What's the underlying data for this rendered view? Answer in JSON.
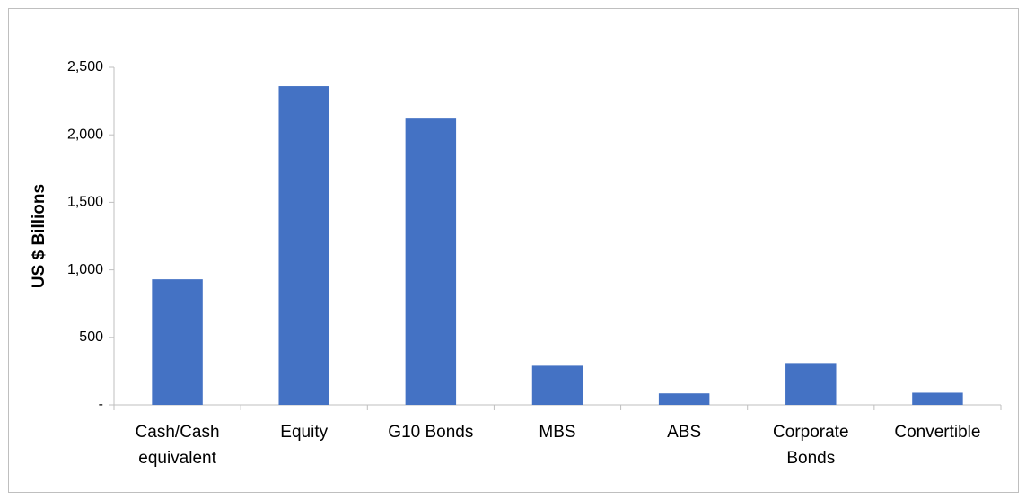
{
  "chart_data": {
    "type": "bar",
    "ylabel": "US $ Billions",
    "categories": [
      "Cash/Cash equivalent",
      "Equity",
      "G10 Bonds",
      "MBS",
      "ABS",
      "Corporate Bonds",
      "Convertible"
    ],
    "values": [
      930,
      2360,
      2120,
      290,
      85,
      310,
      90
    ],
    "color": "#4472c4",
    "ylim": [
      0,
      2500
    ],
    "yticks": [
      {
        "value": 0,
        "label": "-"
      },
      500,
      {
        "value": 1000,
        "label": "1,000"
      },
      {
        "value": 1500,
        "label": "1,500"
      },
      {
        "value": 2000,
        "label": "2,000"
      },
      {
        "value": 2500,
        "label": "2,500"
      }
    ],
    "grid": false
  }
}
